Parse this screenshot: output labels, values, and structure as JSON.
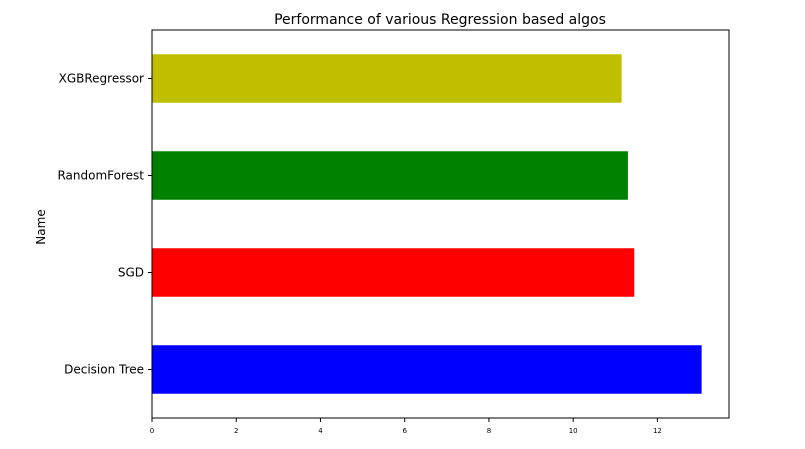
{
  "chart_data": {
    "type": "bar",
    "orientation": "horizontal",
    "title": "Performance of various Regression based algos",
    "xlabel": "",
    "ylabel": "Name",
    "categories": [
      "Decision Tree",
      "SGD",
      "RandomForest",
      "XGBRegressor"
    ],
    "values": [
      13.05,
      11.45,
      11.3,
      11.15
    ],
    "colors": [
      "#0000ff",
      "#ff0000",
      "#008000",
      "#bfbf00"
    ],
    "xlim": [
      0,
      13.7
    ],
    "xticks": [
      0,
      2,
      4,
      6,
      8,
      10,
      12
    ],
    "grid": false,
    "legend": "none"
  }
}
